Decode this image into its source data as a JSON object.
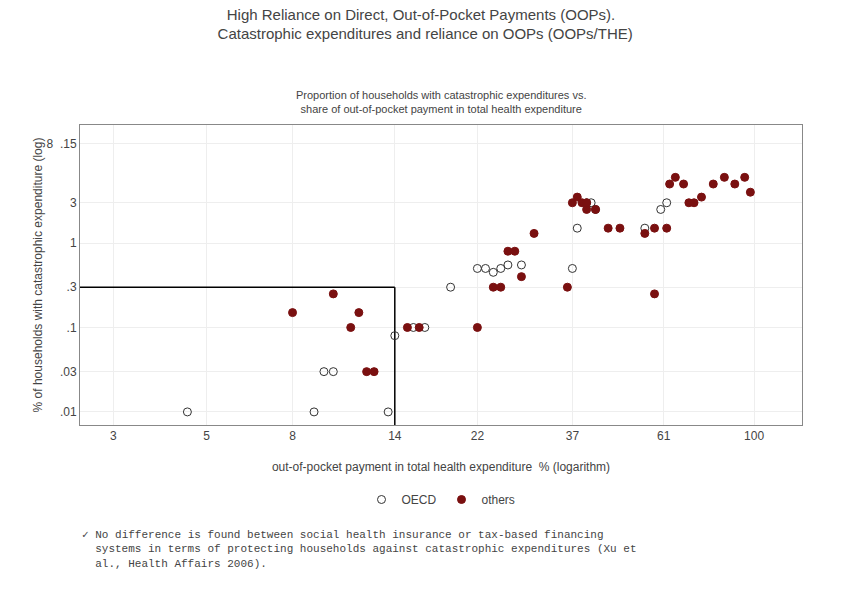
{
  "chart_data": {
    "type": "scatter",
    "title": "High Reliance on Direct, Out-of-Pocket Payments (OOPs).\n  Catastrophic expenditures and reliance on OOPs (OOPs/THE)",
    "subtitle": "Proportion of households with catastrophic expenditures vs.\nshare of out-of-pocket payment in total health expenditure",
    "footnote": "✓ No difference is found between social health insurance or tax-based financing\n  systems in terms of protecting households against catastrophic expenditures (Xu et\n  al., Health Affairs 2006).",
    "x_label": "out-of-pocket payment in total health expenditure  % (logarithm)",
    "y_label": "% of households with catastrophic expenditure (log)",
    "log": true,
    "grid": true,
    "legend": "bottom",
    "xlim": [
      2.5,
      130
    ],
    "ylim": [
      0.007,
      25
    ],
    "xticks": [
      3,
      5,
      8,
      14,
      22,
      37,
      61,
      100
    ],
    "yticks": [
      {
        "value": 0.01,
        "label": ".01"
      },
      {
        "value": 0.03,
        "label": ".03"
      },
      {
        "value": 0.1,
        "label": ".1"
      },
      {
        "value": 0.3,
        "label": ".3"
      },
      1,
      3,
      {
        "value": 15,
        "label": "8  .15"
      }
    ],
    "box": {
      "x": 14,
      "y": 0.3
    },
    "series": [
      {
        "name": "OECD",
        "color": "#333333",
        "marker": "circle-open",
        "x": [
          4.5,
          9.0,
          9.5,
          10.0,
          13.5,
          14.0,
          15.5,
          16.5,
          19.0,
          22.0,
          23.0,
          24.0,
          25.0,
          26.0,
          28.0,
          37.0,
          38.0,
          40.0,
          41.0,
          42.0,
          55.0,
          60.0,
          62.0
        ],
        "values": [
          0.01,
          0.01,
          0.03,
          0.03,
          0.01,
          0.08,
          0.1,
          0.1,
          0.3,
          0.5,
          0.5,
          0.45,
          0.5,
          0.55,
          0.55,
          0.5,
          1.5,
          3.0,
          3.0,
          2.5,
          1.5,
          2.5,
          3.0
        ]
      },
      {
        "name": "others",
        "color": "#7a1010",
        "marker": "circle",
        "x": [
          8.0,
          10.0,
          11.0,
          11.5,
          12.0,
          12.5,
          15.0,
          16.0,
          22.0,
          24.0,
          25.0,
          26.0,
          27.0,
          28.0,
          30.0,
          36.0,
          37.0,
          38.0,
          39.0,
          40.0,
          40.0,
          42.0,
          45.0,
          48.0,
          55.0,
          58.0,
          58.0,
          62.0,
          63.0,
          65.0,
          68.0,
          70.0,
          72.0,
          75.0,
          80.0,
          85.0,
          90.0,
          95.0,
          98.0
        ],
        "values": [
          0.15,
          0.25,
          0.1,
          0.15,
          0.03,
          0.03,
          0.1,
          0.1,
          0.1,
          0.3,
          0.3,
          0.8,
          0.8,
          0.4,
          1.3,
          0.3,
          3.0,
          3.5,
          3.0,
          2.5,
          3.0,
          2.5,
          1.5,
          1.5,
          1.3,
          1.5,
          0.25,
          1.5,
          5.0,
          6.0,
          5.0,
          3.0,
          3.0,
          3.5,
          5.0,
          6.0,
          5.0,
          6.0,
          4.0
        ]
      }
    ]
  }
}
